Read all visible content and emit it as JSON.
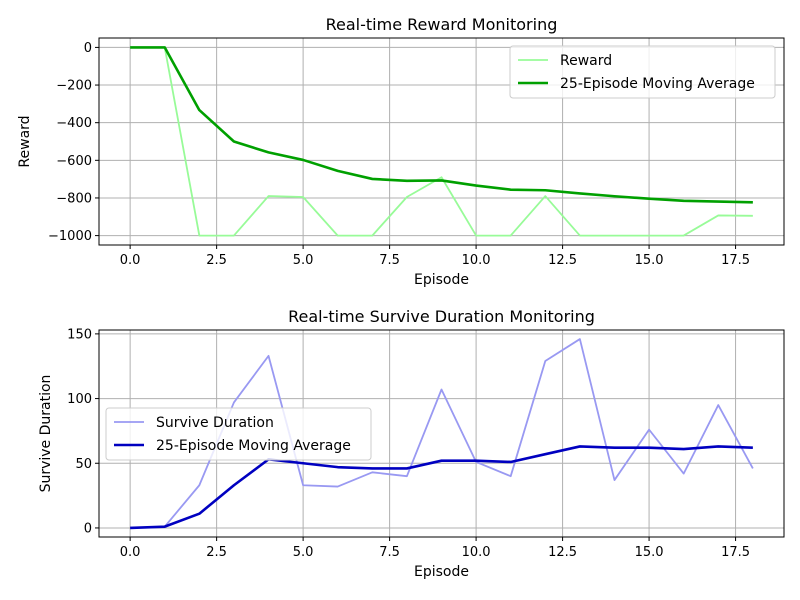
{
  "chart_data": [
    {
      "type": "line",
      "title": "Real-time Reward Monitoring",
      "xlabel": "Episode",
      "ylabel": "Reward",
      "xlim": [
        -0.9,
        18.9
      ],
      "ylim": [
        -1050,
        50
      ],
      "xticks": [
        0.0,
        2.5,
        5.0,
        7.5,
        10.0,
        12.5,
        15.0,
        17.5
      ],
      "xtick_labels": [
        "0.0",
        "2.5",
        "5.0",
        "7.5",
        "10.0",
        "12.5",
        "15.0",
        "17.5"
      ],
      "yticks": [
        0,
        -200,
        -400,
        -600,
        -800,
        -1000
      ],
      "ytick_labels": [
        "0",
        "−200",
        "−400",
        "−600",
        "−800",
        "−1000"
      ],
      "grid": true,
      "legend_position": "top-right",
      "x": [
        0,
        1,
        2,
        3,
        4,
        5,
        6,
        7,
        8,
        9,
        10,
        11,
        12,
        13,
        14,
        15,
        16,
        17,
        18
      ],
      "series": [
        {
          "name": "Reward",
          "color": "#98fb98",
          "width": 1.8,
          "values": [
            0,
            0,
            -1000,
            -1000,
            -790,
            -795,
            -1000,
            -1000,
            -795,
            -690,
            -1000,
            -1000,
            -790,
            -1000,
            -1000,
            -1000,
            -1000,
            -893,
            -895
          ]
        },
        {
          "name": "25-Episode Moving Average",
          "color": "#00a000",
          "width": 2.6,
          "values": [
            0,
            0,
            -333,
            -500,
            -558,
            -598,
            -656,
            -699,
            -709,
            -707,
            -734,
            -756,
            -759,
            -776,
            -791,
            -804,
            -815,
            -819,
            -823
          ]
        }
      ]
    },
    {
      "type": "line",
      "title": "Real-time Survive Duration Monitoring",
      "xlabel": "Episode",
      "ylabel": "Survive Duration",
      "xlim": [
        -0.9,
        18.9
      ],
      "ylim": [
        -7,
        153
      ],
      "xticks": [
        0.0,
        2.5,
        5.0,
        7.5,
        10.0,
        12.5,
        15.0,
        17.5
      ],
      "xtick_labels": [
        "0.0",
        "2.5",
        "5.0",
        "7.5",
        "10.0",
        "12.5",
        "15.0",
        "17.5"
      ],
      "yticks": [
        0,
        50,
        100,
        150
      ],
      "ytick_labels": [
        "0",
        "50",
        "100",
        "150"
      ],
      "grid": true,
      "legend_position": "center-left",
      "x": [
        0,
        1,
        2,
        3,
        4,
        5,
        6,
        7,
        8,
        9,
        10,
        11,
        12,
        13,
        14,
        15,
        16,
        17,
        18
      ],
      "series": [
        {
          "name": "Survive Duration",
          "color": "#9999f2",
          "width": 1.8,
          "values": [
            0,
            1,
            33,
            97,
            133,
            33,
            32,
            43,
            40,
            107,
            51,
            40,
            129,
            146,
            37,
            76,
            42,
            95,
            46
          ]
        },
        {
          "name": "25-Episode Moving Average",
          "color": "#0000c0",
          "width": 2.6,
          "values": [
            0,
            1,
            11,
            33,
            53,
            50,
            47,
            46,
            46,
            52,
            52,
            51,
            57,
            63,
            62,
            62,
            61,
            63,
            62
          ]
        }
      ]
    }
  ]
}
